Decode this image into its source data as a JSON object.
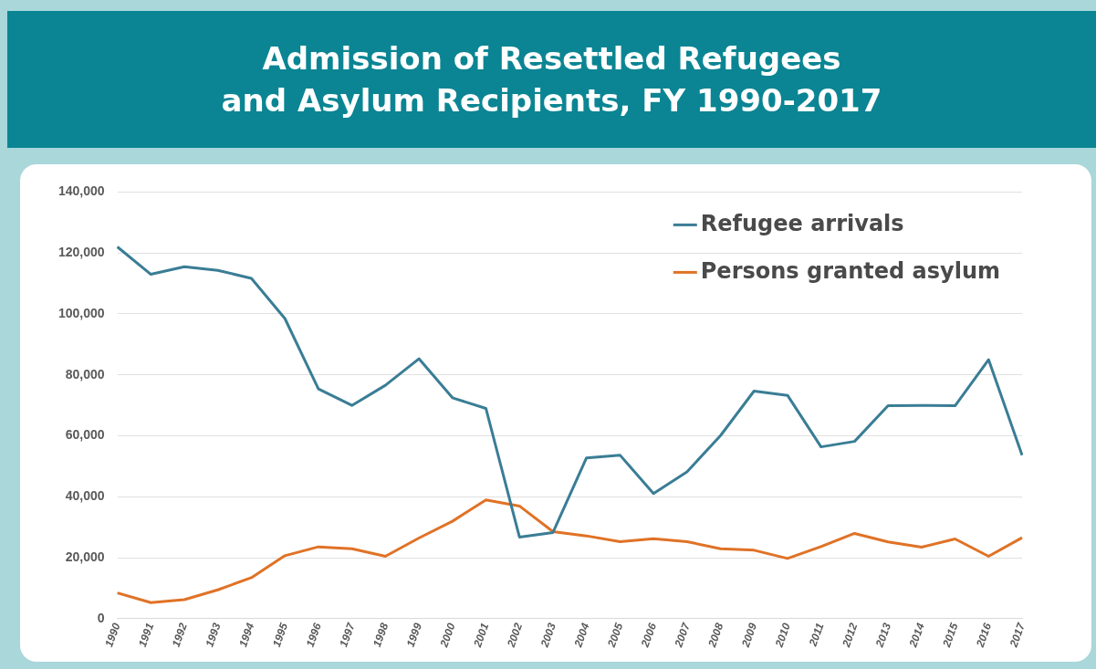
{
  "chart_data": {
    "type": "line",
    "title": "Admission of Resettled Refugees\nand Asylum Recipients, FY 1990-2017",
    "categories": [
      "1990",
      "1991",
      "1992",
      "1993",
      "1994",
      "1995",
      "1996",
      "1997",
      "1998",
      "1999",
      "2000",
      "2001",
      "2002",
      "2003",
      "2004",
      "2005",
      "2006",
      "2007",
      "2008",
      "2009",
      "2010",
      "2011",
      "2012",
      "2013",
      "2014",
      "2015",
      "2016",
      "2017"
    ],
    "series": [
      {
        "name": "Refugee arrivals",
        "color": "#3a7d95",
        "values": [
          122000,
          113000,
          115500,
          114300,
          111700,
          98500,
          75400,
          70000,
          76600,
          85300,
          72500,
          69000,
          26800,
          28300,
          52800,
          53700,
          41100,
          48200,
          60100,
          74700,
          73300,
          56400,
          58200,
          69900,
          70000,
          69900,
          85000,
          53700
        ]
      },
      {
        "name": "Persons granted asylum",
        "color": "#e07226",
        "values": [
          8500,
          5300,
          6300,
          9500,
          13500,
          20700,
          23600,
          23000,
          20500,
          26500,
          32000,
          39000,
          37000,
          28600,
          27200,
          25300,
          26300,
          25300,
          23000,
          22500,
          19800,
          23700,
          28000,
          25200,
          23500,
          26200,
          20500,
          26600
        ]
      }
    ],
    "ylim": [
      0,
      140000
    ],
    "yticks": [
      0,
      {
        "value": 20000,
        "label": "20,000"
      },
      {
        "value": 40000,
        "label": "40,000"
      },
      {
        "value": 60000,
        "label": "60,000"
      },
      {
        "value": 80000,
        "label": "80,000"
      },
      {
        "value": 100000,
        "label": "100,000"
      },
      {
        "value": 120000,
        "label": "120,000"
      },
      {
        "value": 140000,
        "label": "140,000"
      }
    ],
    "grid": "y",
    "legend": "top right",
    "marker": "none",
    "line_style": "solid"
  }
}
